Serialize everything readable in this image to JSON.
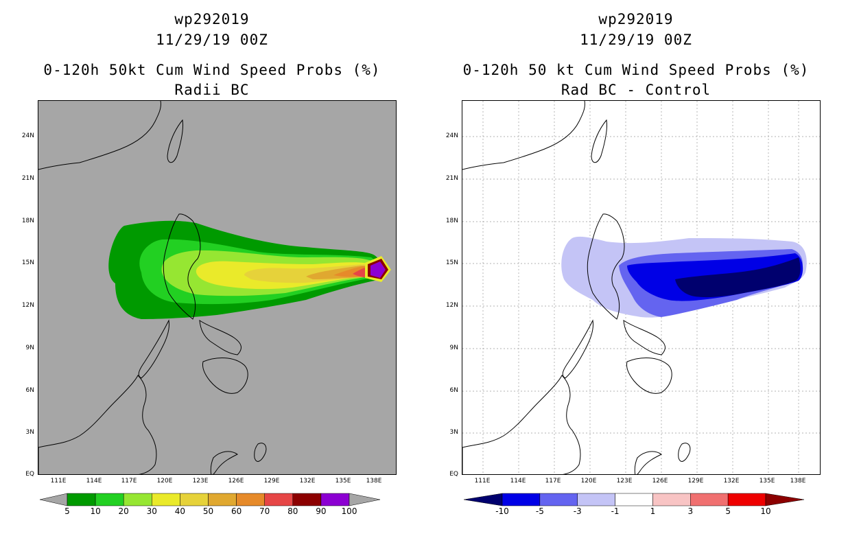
{
  "left": {
    "title1": "wp292019",
    "title2": "11/29/19 00Z",
    "title3": "0-120h 50kt Cum Wind Speed Probs (%)",
    "title4": "Radii BC",
    "background": "#a6a6a6",
    "colorbar_labels": [
      "5",
      "10",
      "20",
      "30",
      "40",
      "50",
      "60",
      "70",
      "80",
      "90",
      "100"
    ],
    "colorbar_colors": [
      "#009a00",
      "#22d022",
      "#96e632",
      "#eaea2a",
      "#e6d23a",
      "#e0a830",
      "#e68a2a",
      "#e64646",
      "#8c0000",
      "#8c00d2"
    ]
  },
  "right": {
    "title1": "wp292019",
    "title2": "11/29/19 00Z",
    "title3": "0-120h 50 kt Cum Wind Speed Probs (%)",
    "title4": "Rad BC - Control",
    "background": "#ffffff",
    "colorbar_labels": [
      "-10",
      "-5",
      "-3",
      "-1",
      "1",
      "3",
      "5",
      "10"
    ],
    "colorbar_colors": [
      "#00006e",
      "#0000e6",
      "#6464f0",
      "#c4c4f6",
      "#ffffff",
      "#f8c4c4",
      "#f07070",
      "#ee0000",
      "#8c0000"
    ]
  },
  "axes": {
    "lat_labels": [
      "24N",
      "21N",
      "18N",
      "15N",
      "12N",
      "9N",
      "6N",
      "3N",
      "EQ"
    ],
    "lon_labels": [
      "111E",
      "114E",
      "117E",
      "120E",
      "123E",
      "126E",
      "129E",
      "132E",
      "135E",
      "138E"
    ]
  }
}
